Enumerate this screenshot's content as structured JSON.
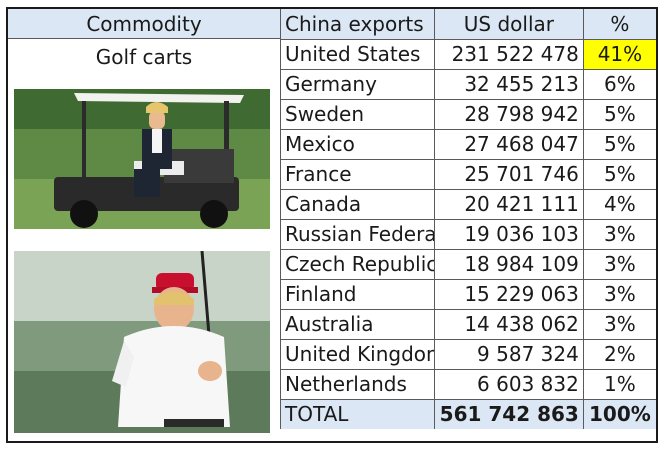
{
  "commodity_header": "Commodity",
  "commodity_name": "Golf carts",
  "columns": {
    "country": "China exports",
    "usd": "US dollar",
    "pct": "%"
  },
  "rows": [
    {
      "country": "United States",
      "usd": "231 522 478",
      "pct": "41%"
    },
    {
      "country": "Germany",
      "usd": "32 455 213",
      "pct": "6%"
    },
    {
      "country": "Sweden",
      "usd": "28 798 942",
      "pct": "5%"
    },
    {
      "country": "Mexico",
      "usd": "27 468 047",
      "pct": "5%"
    },
    {
      "country": "France",
      "usd": "25 701 746",
      "pct": "5%"
    },
    {
      "country": "Canada",
      "usd": "20 421 111",
      "pct": "4%"
    },
    {
      "country": "Russian Federati",
      "usd": "19 036 103",
      "pct": "3%"
    },
    {
      "country": "Czech Republic",
      "usd": "18 984 109",
      "pct": "3%"
    },
    {
      "country": "Finland",
      "usd": "15 229 063",
      "pct": "3%"
    },
    {
      "country": "Australia",
      "usd": "14 438 062",
      "pct": "3%"
    },
    {
      "country": "United Kingdom",
      "usd": "9 587 324",
      "pct": "2%"
    },
    {
      "country": "Netherlands",
      "usd": "6 603 832",
      "pct": "1%"
    }
  ],
  "total": {
    "label": "TOTAL",
    "usd": "561 742 863",
    "pct": "100%"
  },
  "colors": {
    "header_bg": "#dbe7f4",
    "highlight": "#ffff00",
    "border": "#5a5a5a"
  }
}
